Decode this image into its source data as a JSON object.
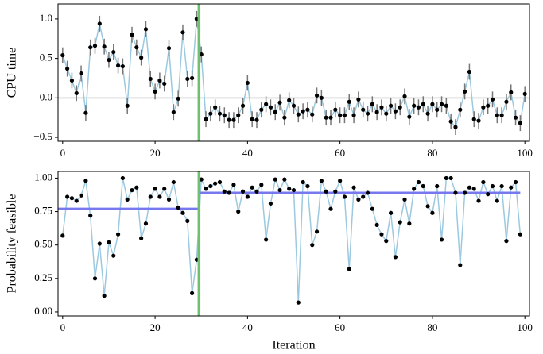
{
  "chart_data": [
    {
      "type": "line",
      "ylabel": "CPU time",
      "x": [
        0,
        1,
        2,
        3,
        4,
        5,
        6,
        7,
        8,
        9,
        10,
        11,
        12,
        13,
        14,
        15,
        16,
        17,
        18,
        19,
        20,
        21,
        22,
        23,
        24,
        25,
        26,
        27,
        28,
        29,
        30,
        31,
        32,
        33,
        34,
        35,
        36,
        37,
        38,
        39,
        40,
        41,
        42,
        43,
        44,
        45,
        46,
        47,
        48,
        49,
        50,
        51,
        52,
        53,
        54,
        55,
        56,
        57,
        58,
        59,
        60,
        61,
        62,
        63,
        64,
        65,
        66,
        67,
        68,
        69,
        70,
        71,
        72,
        73,
        74,
        75,
        76,
        77,
        78,
        79,
        80,
        81,
        82,
        83,
        84,
        85,
        86,
        87,
        88,
        89,
        90,
        91,
        92,
        93,
        94,
        95,
        96,
        97,
        98,
        99,
        100
      ],
      "values": [
        0.54,
        0.37,
        0.22,
        0.06,
        0.31,
        -0.19,
        0.64,
        0.66,
        0.94,
        0.65,
        0.48,
        0.58,
        0.41,
        0.4,
        -0.1,
        0.8,
        0.64,
        0.51,
        0.87,
        0.24,
        0.08,
        0.22,
        0.18,
        0.63,
        -0.18,
        -0.01,
        0.83,
        0.24,
        0.25,
        1.0,
        0.55,
        -0.27,
        -0.2,
        -0.12,
        -0.2,
        -0.22,
        -0.28,
        -0.28,
        -0.22,
        -0.1,
        0.19,
        -0.27,
        -0.28,
        -0.15,
        -0.08,
        -0.12,
        -0.18,
        -0.06,
        -0.25,
        -0.03,
        -0.1,
        -0.21,
        -0.17,
        -0.15,
        -0.21,
        0.03,
        0.0,
        -0.25,
        -0.25,
        -0.15,
        -0.22,
        -0.22,
        -0.05,
        -0.22,
        -0.02,
        -0.15,
        -0.2,
        -0.08,
        -0.18,
        -0.12,
        -0.2,
        -0.1,
        -0.17,
        -0.12,
        0.02,
        -0.24,
        -0.1,
        -0.12,
        -0.08,
        -0.2,
        -0.08,
        -0.15,
        -0.08,
        -0.1,
        -0.3,
        -0.37,
        -0.15,
        0.08,
        0.33,
        -0.27,
        -0.29,
        -0.12,
        -0.1,
        -0.02,
        -0.22,
        -0.22,
        -0.05,
        0.07,
        -0.25,
        -0.32,
        0.05
      ],
      "errors": [
        0.1,
        0.1,
        0.1,
        0.1,
        0.1,
        0.1,
        0.1,
        0.1,
        0.1,
        0.1,
        0.1,
        0.1,
        0.1,
        0.1,
        0.1,
        0.1,
        0.1,
        0.1,
        0.1,
        0.1,
        0.1,
        0.1,
        0.1,
        0.1,
        0.1,
        0.1,
        0.1,
        0.1,
        0.1,
        0.1,
        0.1,
        0.1,
        0.1,
        0.1,
        0.1,
        0.1,
        0.1,
        0.1,
        0.1,
        0.1,
        0.1,
        0.1,
        0.1,
        0.1,
        0.1,
        0.1,
        0.1,
        0.1,
        0.1,
        0.1,
        0.1,
        0.1,
        0.1,
        0.1,
        0.1,
        0.1,
        0.1,
        0.1,
        0.1,
        0.1,
        0.1,
        0.1,
        0.1,
        0.1,
        0.1,
        0.1,
        0.1,
        0.1,
        0.1,
        0.1,
        0.1,
        0.1,
        0.1,
        0.1,
        0.1,
        0.1,
        0.1,
        0.1,
        0.1,
        0.1,
        0.1,
        0.1,
        0.1,
        0.1,
        0.1,
        0.1,
        0.1,
        0.1,
        0.1,
        0.1,
        0.1,
        0.1,
        0.1,
        0.1,
        0.1,
        0.1,
        0.1,
        0.1,
        0.1,
        0.1,
        0.1
      ],
      "color": "#9cc9e0",
      "marker_color": "#000000",
      "error_color": "#777777",
      "xlim": [
        -1,
        101
      ],
      "ylim": [
        -0.55,
        1.19
      ],
      "xticks": [
        0,
        20,
        40,
        60,
        80,
        100
      ],
      "yticks": [
        {
          "value": -0.5,
          "label": "−0.5"
        },
        {
          "value": 0,
          "label": "0.0"
        },
        {
          "value": 0.5,
          "label": "0.5"
        },
        {
          "value": 1,
          "label": "1.0"
        }
      ],
      "hline": 0,
      "hline_color": "#dddddd",
      "vline": 29.5,
      "vline_color": "#6fbf6f"
    },
    {
      "type": "line",
      "ylabel": "Probability feasible",
      "xlabel": "Iteration",
      "x": [
        0,
        1,
        2,
        3,
        4,
        5,
        6,
        7,
        8,
        9,
        10,
        11,
        12,
        13,
        14,
        15,
        16,
        17,
        18,
        19,
        20,
        21,
        22,
        23,
        24,
        25,
        26,
        27,
        28,
        29,
        30,
        31,
        32,
        33,
        34,
        35,
        36,
        37,
        38,
        39,
        40,
        41,
        42,
        43,
        44,
        45,
        46,
        47,
        48,
        49,
        50,
        51,
        52,
        53,
        54,
        55,
        56,
        57,
        58,
        59,
        60,
        61,
        62,
        63,
        64,
        65,
        66,
        67,
        68,
        69,
        70,
        71,
        72,
        73,
        74,
        75,
        76,
        77,
        78,
        79,
        80,
        81,
        82,
        83,
        84,
        85,
        86,
        87,
        88,
        89,
        90,
        91,
        92,
        93,
        94,
        95,
        96,
        97,
        98,
        99
      ],
      "values": [
        0.57,
        0.86,
        0.85,
        0.83,
        0.87,
        0.98,
        0.72,
        0.25,
        0.51,
        0.12,
        0.52,
        0.42,
        0.58,
        1.0,
        0.84,
        0.91,
        0.93,
        0.55,
        0.66,
        0.86,
        0.92,
        0.86,
        0.92,
        0.84,
        0.97,
        0.78,
        0.74,
        0.68,
        0.14,
        0.39,
        0.99,
        0.92,
        0.94,
        0.96,
        0.97,
        0.9,
        0.89,
        0.95,
        0.75,
        0.9,
        0.86,
        0.93,
        0.9,
        0.95,
        0.54,
        0.81,
        0.99,
        0.91,
        0.99,
        0.92,
        0.91,
        0.07,
        0.97,
        0.94,
        0.5,
        0.6,
        0.98,
        0.9,
        0.77,
        0.9,
        0.98,
        0.86,
        0.32,
        0.93,
        0.84,
        0.86,
        0.89,
        0.77,
        0.65,
        0.58,
        0.53,
        0.74,
        0.41,
        0.67,
        0.84,
        0.66,
        0.92,
        0.97,
        0.94,
        0.79,
        0.74,
        0.94,
        0.54,
        1.0,
        1.0,
        0.89,
        0.35,
        0.89,
        0.93,
        0.92,
        0.83,
        0.97,
        0.88,
        0.94,
        0.83,
        0.94,
        0.53,
        0.93,
        0.97,
        0.58
      ],
      "color": "#9cc9e0",
      "marker_color": "#000000",
      "xlim": [
        -1,
        101
      ],
      "ylim": [
        -0.03,
        1.05
      ],
      "xticks": [
        0,
        20,
        40,
        60,
        80,
        100
      ],
      "yticks": [
        {
          "value": 0,
          "label": "0.00"
        },
        {
          "value": 0.25,
          "label": "0.25"
        },
        {
          "value": 0.5,
          "label": "0.50"
        },
        {
          "value": 0.75,
          "label": "0.75"
        },
        {
          "value": 1,
          "label": "1.00"
        }
      ],
      "segments": [
        {
          "x": [
            -1,
            29.5
          ],
          "y": 0.77
        },
        {
          "x": [
            29.5,
            99
          ],
          "y": 0.89
        }
      ],
      "segment_color": "#7777ee",
      "vline": 29.5,
      "vline_color": "#6fbf6f"
    }
  ]
}
